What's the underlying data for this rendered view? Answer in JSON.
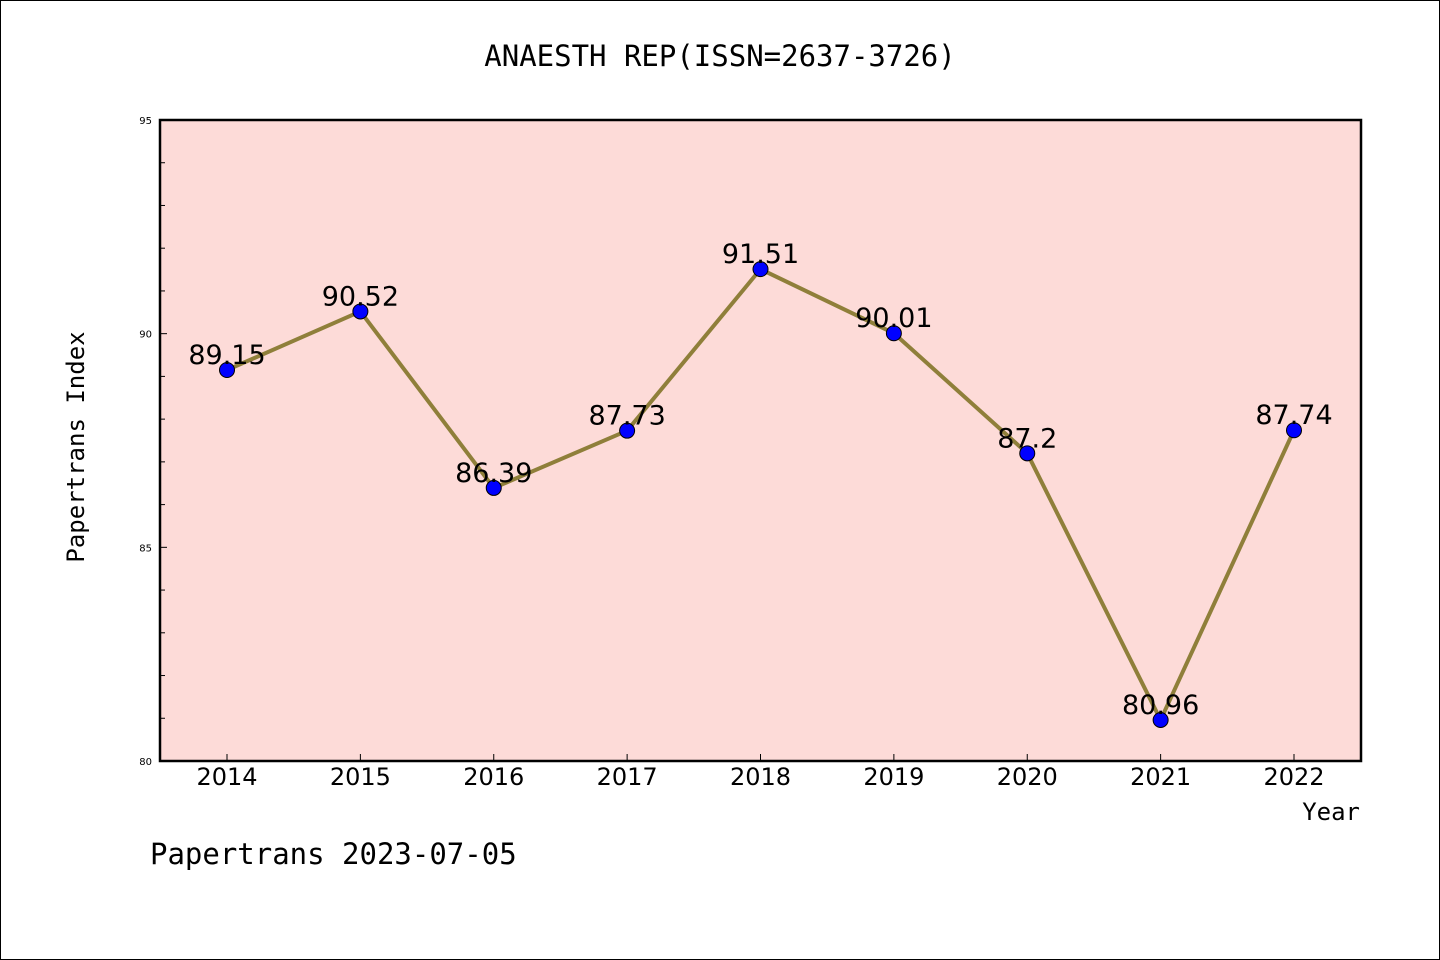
{
  "chart_data": {
    "type": "line",
    "title": "ANAESTH REP(ISSN=2637-3726)",
    "xlabel": "Year",
    "ylabel": "Papertrans Index",
    "categories": [
      "2014",
      "2015",
      "2016",
      "2017",
      "2018",
      "2019",
      "2020",
      "2021",
      "2022"
    ],
    "series": [
      {
        "values": [
          89.15,
          90.52,
          86.39,
          87.73,
          91.51,
          90.01,
          87.2,
          80.96,
          87.74
        ],
        "labels": [
          "89.15",
          "90.52",
          "86.39",
          "87.73",
          "91.51",
          "90.01",
          "87.2",
          "80.96",
          "87.74"
        ]
      }
    ],
    "ylim": [
      80,
      95
    ],
    "yticks": [
      "80",
      "85",
      "90",
      "95"
    ],
    "grid": false,
    "colors": {
      "plot_background": "#fddbd8",
      "line": "#8f7f3a",
      "marker": "#0000ff"
    }
  },
  "footer": {
    "text": "Papertrans 2023-07-05"
  }
}
